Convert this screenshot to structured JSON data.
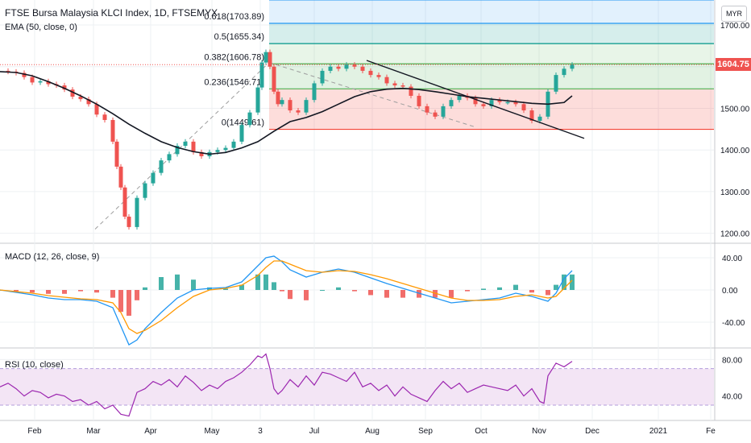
{
  "header": {
    "title": "FTSE Bursa Malaysia KLCI Index, 1D, FTSEMYX",
    "indicator": "EMA (50, close, 0)",
    "currency": "MYR"
  },
  "colors": {
    "up": "#26a69a",
    "down": "#ef5350",
    "ema": "#131722",
    "macd_line": "#2196f3",
    "signal_line": "#ff9800",
    "rsi_line": "#9c27b0",
    "rsi_band": "#f3e5f5",
    "price_badge": "#ef5350"
  },
  "current_price": "1604.75",
  "chart_data": [
    {
      "type": "candlestick",
      "title": "FTSE Bursa Malaysia KLCI Index, 1D, FTSEMYX",
      "ylim": [
        1180,
        1760
      ],
      "y_ticks": [
        "1200.00",
        "1300.00",
        "1400.00",
        "1500.00",
        "1600.00",
        "1700.00"
      ],
      "x_ticks": [
        "Feb",
        "Mar",
        "Apr",
        "May",
        "3",
        "Jul",
        "Aug",
        "Sep",
        "Oct",
        "Nov",
        "Dec",
        "2021",
        "Fe"
      ],
      "series": [
        {
          "name": "EMA (50, close, 0)",
          "x": [
            0,
            20,
            40,
            60,
            80,
            100,
            120,
            140,
            160,
            180,
            200,
            220,
            240,
            260,
            280,
            300,
            320,
            340,
            360,
            380,
            400,
            420,
            440,
            460,
            480,
            500,
            520,
            540,
            560,
            580,
            600,
            620,
            640,
            660,
            680,
            700,
            710
          ],
          "values": [
            1588,
            1586,
            1578,
            1564,
            1548,
            1530,
            1510,
            1487,
            1462,
            1440,
            1420,
            1406,
            1396,
            1390,
            1394,
            1405,
            1420,
            1445,
            1468,
            1478,
            1492,
            1510,
            1528,
            1540,
            1546,
            1548,
            1545,
            1540,
            1534,
            1528,
            1524,
            1520,
            1516,
            1512,
            1510,
            1514,
            1530
          ]
        },
        {
          "name": "close",
          "x": [
            0,
            10,
            20,
            30,
            40,
            50,
            60,
            70,
            80,
            90,
            100,
            110,
            120,
            130,
            140,
            145,
            150,
            155,
            160,
            170,
            180,
            190,
            200,
            210,
            220,
            230,
            240,
            250,
            260,
            270,
            280,
            290,
            300,
            310,
            320,
            325,
            330,
            335,
            340,
            345,
            350,
            360,
            370,
            380,
            390,
            400,
            410,
            420,
            430,
            440,
            450,
            460,
            470,
            480,
            490,
            500,
            510,
            520,
            530,
            540,
            550,
            560,
            570,
            580,
            590,
            600,
            610,
            620,
            630,
            640,
            650,
            660,
            670,
            680,
            690,
            700,
            710
          ],
          "values": [
            1590,
            1588,
            1585,
            1575,
            1562,
            1565,
            1558,
            1555,
            1545,
            1528,
            1522,
            1510,
            1485,
            1472,
            1420,
            1360,
            1310,
            1240,
            1215,
            1285,
            1320,
            1345,
            1375,
            1390,
            1410,
            1420,
            1395,
            1385,
            1395,
            1400,
            1405,
            1420,
            1460,
            1490,
            1550,
            1610,
            1635,
            1600,
            1540,
            1510,
            1520,
            1495,
            1490,
            1520,
            1560,
            1590,
            1600,
            1595,
            1605,
            1600,
            1590,
            1580,
            1575,
            1560,
            1555,
            1552,
            1530,
            1505,
            1490,
            1480,
            1505,
            1520,
            1530,
            1525,
            1510,
            1505,
            1520,
            1515,
            1515,
            1510,
            1495,
            1470,
            1480,
            1540,
            1580,
            1595,
            1605
          ]
        }
      ],
      "fibonacci": [
        {
          "label": "0.618(1703.89)",
          "value": 1703.89
        },
        {
          "label": "0.5(1655.34)",
          "value": 1655.34
        },
        {
          "label": "0.382(1606.78)",
          "value": 1606.78
        },
        {
          "label": "0.236(1546.71)",
          "value": 1546.71
        },
        {
          "label": "0(1449.61)",
          "value": 1449.61
        }
      ]
    },
    {
      "type": "bar",
      "title": "MACD (12, 26, close, 9)",
      "ylim": [
        -70,
        55
      ],
      "y_ticks": [
        "40.00",
        "0.00",
        "-40.00"
      ],
      "series": [
        {
          "name": "MACD",
          "x": [
            0,
            20,
            40,
            60,
            80,
            100,
            120,
            140,
            150,
            160,
            170,
            180,
            200,
            220,
            240,
            260,
            280,
            300,
            320,
            330,
            340,
            350,
            360,
            380,
            400,
            420,
            440,
            460,
            480,
            500,
            520,
            540,
            560,
            580,
            600,
            620,
            640,
            660,
            680,
            690,
            700,
            710
          ],
          "values": [
            0,
            -3,
            -6,
            -10,
            -12,
            -12,
            -14,
            -22,
            -45,
            -68,
            -62,
            -48,
            -28,
            -10,
            0,
            2,
            3,
            10,
            30,
            40,
            42,
            35,
            25,
            16,
            22,
            26,
            22,
            15,
            8,
            2,
            -4,
            -10,
            -16,
            -14,
            -12,
            -10,
            -4,
            -8,
            -14,
            -4,
            14,
            24
          ]
        },
        {
          "name": "Signal",
          "x": [
            0,
            20,
            40,
            60,
            80,
            100,
            120,
            140,
            150,
            160,
            170,
            180,
            200,
            220,
            240,
            260,
            280,
            300,
            320,
            330,
            340,
            350,
            360,
            380,
            400,
            420,
            440,
            460,
            480,
            500,
            520,
            540,
            560,
            580,
            600,
            620,
            640,
            660,
            680,
            690,
            700,
            710
          ],
          "values": [
            0,
            -2,
            -4,
            -7,
            -9,
            -11,
            -12,
            -16,
            -28,
            -48,
            -54,
            -50,
            -38,
            -22,
            -8,
            0,
            2,
            6,
            18,
            28,
            36,
            36,
            32,
            24,
            22,
            24,
            23,
            19,
            14,
            8,
            2,
            -4,
            -10,
            -13,
            -13,
            -12,
            -8,
            -6,
            -10,
            -8,
            2,
            12
          ]
        }
      ]
    },
    {
      "type": "line",
      "title": "RSI (10, close)",
      "ylim": [
        15,
        90
      ],
      "y_ticks": [
        "80.00",
        "40.00"
      ],
      "band": [
        30,
        70
      ],
      "series": [
        {
          "name": "RSI",
          "x": [
            0,
            10,
            20,
            30,
            40,
            50,
            60,
            70,
            80,
            90,
            100,
            110,
            120,
            130,
            140,
            150,
            160,
            170,
            180,
            190,
            200,
            210,
            220,
            230,
            240,
            250,
            260,
            270,
            280,
            290,
            300,
            310,
            320,
            325,
            330,
            335,
            340,
            345,
            350,
            360,
            370,
            380,
            390,
            400,
            410,
            420,
            430,
            440,
            450,
            460,
            470,
            480,
            490,
            500,
            510,
            520,
            530,
            540,
            550,
            560,
            570,
            580,
            590,
            600,
            610,
            620,
            630,
            640,
            650,
            660,
            670,
            675,
            680,
            690,
            700,
            710
          ],
          "values": [
            50,
            54,
            48,
            40,
            46,
            44,
            38,
            42,
            40,
            34,
            36,
            30,
            34,
            26,
            30,
            20,
            18,
            44,
            48,
            56,
            52,
            58,
            50,
            62,
            55,
            46,
            52,
            48,
            56,
            60,
            66,
            74,
            84,
            82,
            86,
            70,
            48,
            42,
            46,
            58,
            50,
            62,
            52,
            66,
            64,
            60,
            56,
            66,
            50,
            54,
            46,
            52,
            40,
            50,
            42,
            38,
            34,
            46,
            56,
            48,
            54,
            44,
            48,
            52,
            50,
            48,
            46,
            52,
            40,
            48,
            34,
            32,
            62,
            76,
            72,
            78
          ]
        }
      ]
    }
  ]
}
